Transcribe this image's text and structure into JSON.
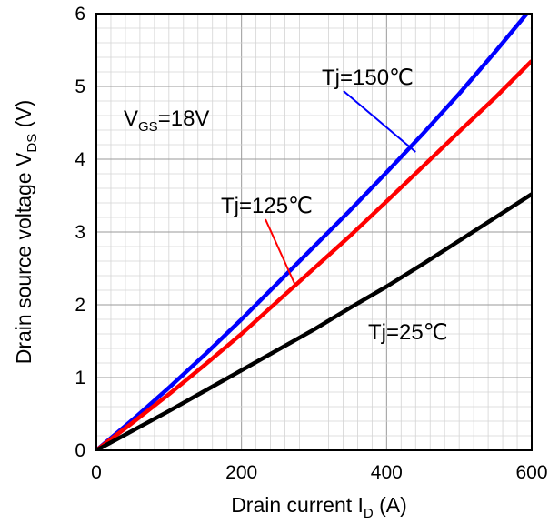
{
  "chart_data": {
    "type": "line",
    "title": "",
    "xlabel": {
      "main": "Drain current I",
      "sub": "D",
      "unit": " (A)"
    },
    "ylabel": {
      "main": "Drain source voltage V",
      "sub": "DS",
      "unit": " (V)"
    },
    "xlim": [
      0,
      600
    ],
    "ylim": [
      0,
      6
    ],
    "xticks": [
      "0",
      "200",
      "400",
      "600"
    ],
    "yticks": [
      "0",
      "1",
      "2",
      "3",
      "4",
      "5",
      "6"
    ],
    "grid": true,
    "condition": {
      "main": "V",
      "sub": "GS",
      "rest": "=18V"
    },
    "series": [
      {
        "name": "Tj=150℃",
        "color": "#0000ff",
        "x": [
          0,
          50,
          100,
          150,
          200,
          250,
          300,
          350,
          400,
          450,
          500,
          550,
          600
        ],
        "y": [
          0,
          0.42,
          0.86,
          1.32,
          1.8,
          2.3,
          2.8,
          3.3,
          3.82,
          4.35,
          4.9,
          5.48,
          6.08
        ]
      },
      {
        "name": "Tj=125℃",
        "color": "#ff0000",
        "x": [
          0,
          50,
          100,
          150,
          200,
          250,
          300,
          350,
          400,
          450,
          500,
          550,
          600
        ],
        "y": [
          0,
          0.38,
          0.77,
          1.18,
          1.6,
          2.05,
          2.5,
          2.95,
          3.42,
          3.9,
          4.38,
          4.85,
          5.35
        ]
      },
      {
        "name": "Tj=25℃",
        "color": "#000000",
        "x": [
          0,
          50,
          100,
          150,
          200,
          250,
          300,
          350,
          400,
          450,
          500,
          550,
          600
        ],
        "y": [
          0,
          0.27,
          0.54,
          0.82,
          1.1,
          1.38,
          1.66,
          1.96,
          2.25,
          2.56,
          2.88,
          3.2,
          3.52
        ]
      }
    ],
    "annotations": [
      {
        "text": "Tj=150℃",
        "series": 0,
        "leader_from": [
          440,
          4.1
        ]
      },
      {
        "text": "Tj=125℃",
        "series": 1,
        "leader_from": [
          275,
          2.25
        ]
      },
      {
        "text": "Tj=25℃",
        "series": 2
      }
    ]
  }
}
